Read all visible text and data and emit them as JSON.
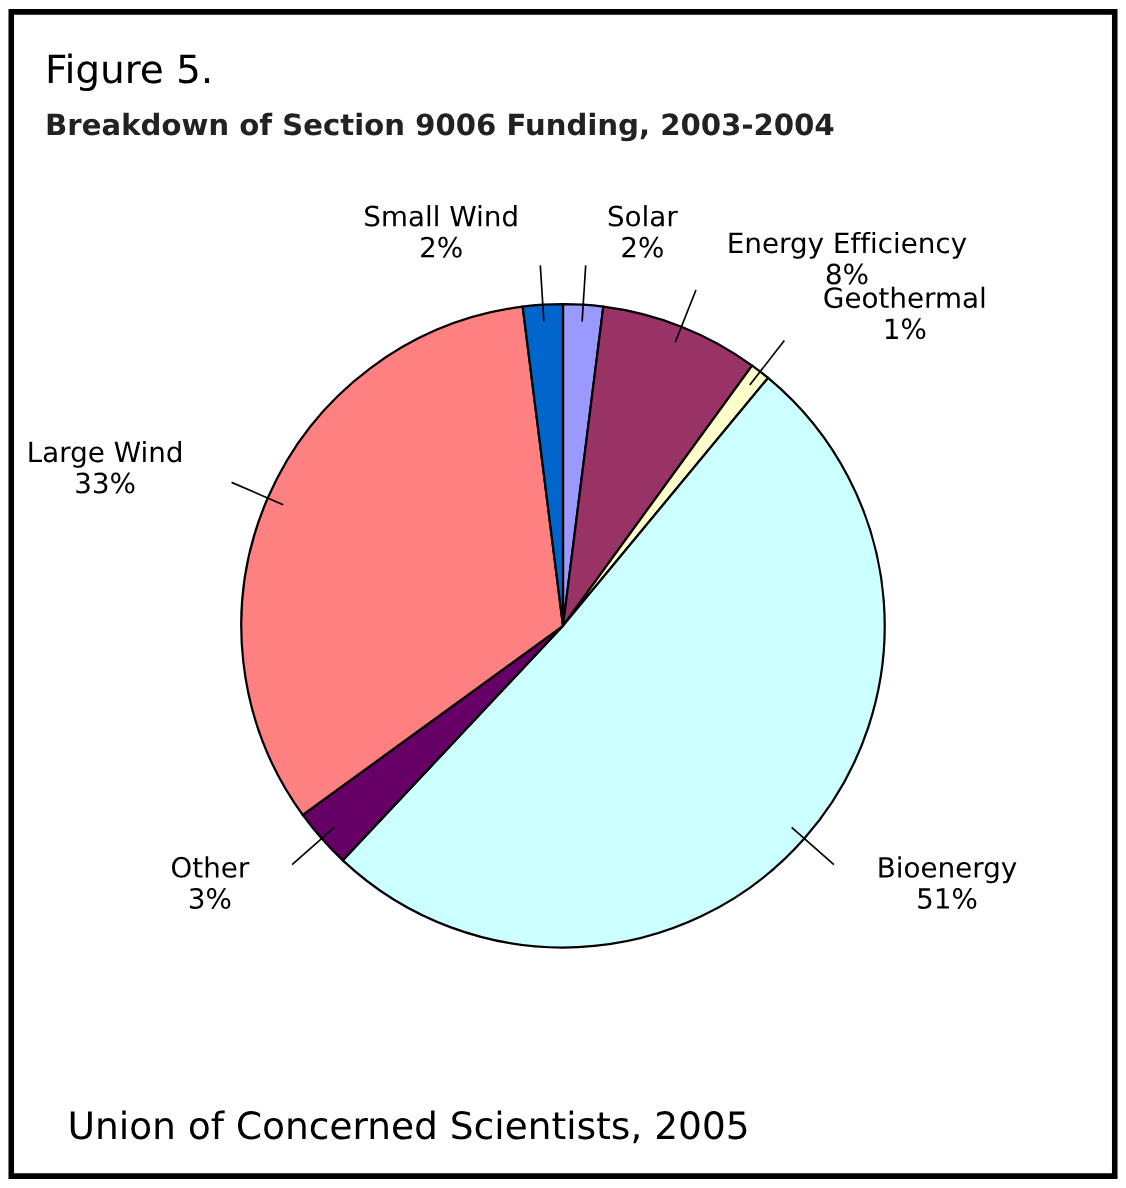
{
  "chart_data": {
    "type": "pie",
    "title": "Figure 5.",
    "subtitle": "Breakdown of Section 9006 Funding, 2003-2004",
    "categories": [
      "Solar",
      "Energy Efficiency",
      "Geothermal",
      "Bioenergy",
      "Other",
      "Large Wind",
      "Small Wind"
    ],
    "values": [
      2,
      8,
      1,
      51,
      3,
      33,
      2
    ],
    "colors": [
      "#9999ff",
      "#993366",
      "#ffffcc",
      "#ccffff",
      "#660066",
      "#ff8080",
      "#0066cc"
    ],
    "value_labels": [
      "2%",
      "8%",
      "1%",
      "51%",
      "3%",
      "33%",
      "2%"
    ],
    "annotations": [
      "Union of Concerned Scientists, 2005"
    ]
  }
}
